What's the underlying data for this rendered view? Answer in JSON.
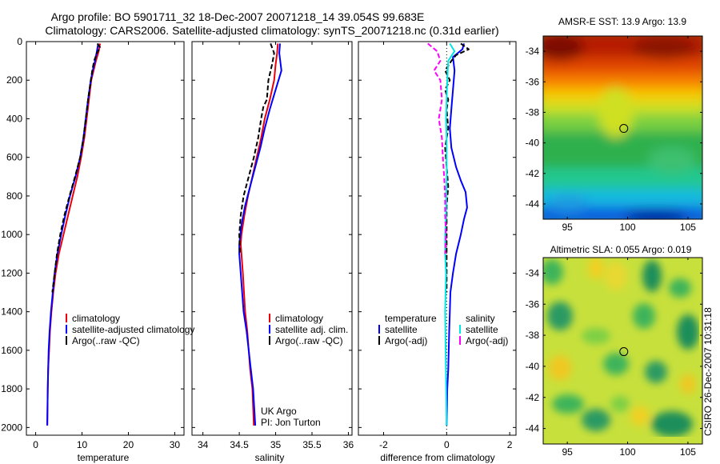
{
  "header": {
    "line1": "Argo profile: BO 5901711_32 18-Dec-2007 20071218_14 39.054S 99.683E",
    "line2": "Climatology: CARS2006. Satellite-adjusted climatology: synTS_20071218.nc (0.31d earlier)"
  },
  "side_label": "CSIRO 26-Dec-2007 10:31:18",
  "annotation": {
    "line1": "UK Argo",
    "line2": "PI: Jon Turton"
  },
  "colors": {
    "climatology": "#e8000b",
    "satellite": "#0000ff",
    "argo": "#000000",
    "sal_satellite": "#00e6e6",
    "sal_argo": "#ff00ff"
  },
  "y_ticks": [
    "0",
    "200",
    "400",
    "600",
    "800",
    "1000",
    "1200",
    "1400",
    "1600",
    "1800",
    "2000"
  ],
  "chart_data": [
    {
      "type": "line",
      "xlabel": "temperature",
      "xlim": [
        -2,
        32
      ],
      "ylim": [
        2040,
        0
      ],
      "x_ticks": [
        "0",
        "10",
        "20",
        "30"
      ],
      "legend": [
        "climatology",
        "satellite-adjusted climatology",
        "Argo(..raw -QC)"
      ],
      "series": [
        {
          "name": "climatology",
          "x": [
            13.9,
            13.6,
            13.0,
            12.5,
            12.0,
            11.5,
            11.0,
            10.5,
            9.8,
            9.0,
            8.0,
            7.0,
            6.0,
            5.0,
            4.3,
            3.8,
            3.4,
            3.1,
            2.9,
            2.7,
            2.6,
            2.5
          ],
          "y": [
            10,
            50,
            100,
            150,
            200,
            300,
            400,
            500,
            600,
            700,
            800,
            900,
            1000,
            1100,
            1200,
            1300,
            1400,
            1500,
            1600,
            1700,
            1800,
            1990
          ]
        },
        {
          "name": "satellite-adjusted climatology",
          "x": [
            13.5,
            13.2,
            12.8,
            12.3,
            11.9,
            11.3,
            10.8,
            10.3,
            9.6,
            8.6,
            7.4,
            6.4,
            5.5,
            4.7,
            4.1,
            3.7,
            3.3,
            3.0,
            2.8,
            2.7,
            2.6,
            2.5
          ],
          "y": [
            10,
            50,
            100,
            150,
            200,
            300,
            400,
            500,
            600,
            700,
            800,
            900,
            1000,
            1100,
            1200,
            1300,
            1400,
            1500,
            1600,
            1700,
            1800,
            1990
          ]
        },
        {
          "name": "Argo(..raw -QC)",
          "x": [
            13.3,
            13.9,
            13.2,
            12.6,
            12.2,
            11.9,
            11.3,
            10.8,
            10.3,
            9.6,
            8.5,
            7.3,
            6.2,
            5.3,
            4.6,
            4.1,
            3.6
          ],
          "y": [
            10,
            30,
            60,
            100,
            150,
            200,
            300,
            400,
            500,
            600,
            700,
            800,
            900,
            1000,
            1100,
            1200,
            1300
          ]
        }
      ]
    },
    {
      "type": "line",
      "xlabel": "salinity",
      "xlim": [
        33.85,
        36.05
      ],
      "ylim": [
        2040,
        0
      ],
      "x_ticks": [
        "34",
        "34.5",
        "35",
        "35.5",
        "36"
      ],
      "legend": [
        "climatology",
        "satellite adj. clim.",
        "Argo(..raw -QC)"
      ],
      "series": [
        {
          "name": "climatology",
          "x": [
            35.03,
            35.02,
            35.0,
            34.98,
            34.92,
            34.85,
            34.8,
            34.74,
            34.68,
            34.62,
            34.57,
            34.53,
            34.52,
            34.55,
            34.58,
            34.61,
            34.63,
            34.65,
            34.68,
            34.7
          ],
          "y": [
            10,
            60,
            120,
            200,
            300,
            400,
            500,
            600,
            700,
            800,
            900,
            1000,
            1050,
            1200,
            1400,
            1500,
            1600,
            1700,
            1800,
            1990
          ]
        },
        {
          "name": "satellite adj. clim.",
          "x": [
            35.06,
            35.05,
            35.08,
            35.0,
            34.92,
            34.85,
            34.79,
            34.72,
            34.65,
            34.58,
            34.53,
            34.5,
            34.5,
            34.53,
            34.56,
            34.6,
            34.63,
            34.66,
            34.69,
            34.72
          ],
          "y": [
            10,
            60,
            150,
            250,
            350,
            450,
            550,
            650,
            750,
            850,
            950,
            1050,
            1100,
            1250,
            1400,
            1500,
            1600,
            1700,
            1800,
            1990
          ]
        },
        {
          "name": "Argo(..raw -QC)",
          "x": [
            34.93,
            34.98,
            34.95,
            34.9,
            34.88,
            34.83,
            34.8,
            34.76,
            34.7,
            34.63,
            34.56,
            34.52,
            34.5,
            34.51
          ],
          "y": [
            10,
            60,
            120,
            200,
            300,
            340,
            400,
            500,
            600,
            700,
            800,
            900,
            1000,
            1100
          ]
        }
      ]
    },
    {
      "type": "line",
      "xlabel": "difference from climatology",
      "xlim": [
        -2.8,
        2.2
      ],
      "ylim": [
        2040,
        0
      ],
      "x_ticks": [
        "-2",
        "0",
        "2"
      ],
      "legend_groups": [
        {
          "title": "temperature",
          "items": [
            "satellite",
            "Argo(-adj)"
          ]
        },
        {
          "title": "salinity",
          "items": [
            "satellite",
            "Argo(-adj)"
          ]
        }
      ],
      "series": [
        {
          "name": "temperature satellite",
          "x": [
            0.55,
            0.5,
            0.2,
            0.25,
            0.2,
            0.15,
            0.1,
            0.15,
            0.3,
            0.45,
            0.6,
            0.65,
            0.55,
            0.45,
            0.3,
            0.2,
            0.12,
            0.1,
            0.08,
            0.05,
            0.02,
            0.0
          ],
          "y": [
            10,
            40,
            80,
            150,
            250,
            350,
            450,
            550,
            650,
            720,
            780,
            860,
            920,
            1000,
            1100,
            1200,
            1300,
            1400,
            1500,
            1700,
            1800,
            1990
          ]
        },
        {
          "name": "temperature Argo(-adj)",
          "x": [
            0.45,
            0.7,
            0.3,
            0.15,
            -0.05,
            0.1,
            -0.05,
            0.05,
            0.0,
            0.05,
            -0.05,
            0.0,
            0.05,
            0.0,
            0.0,
            0.0,
            0.0
          ],
          "y": [
            10,
            40,
            70,
            100,
            150,
            200,
            250,
            300,
            350,
            450,
            550,
            650,
            750,
            850,
            1000,
            1100,
            1300
          ]
        },
        {
          "name": "salinity satellite",
          "x": [
            0.1,
            0.25,
            0.05,
            0.02,
            0.0,
            -0.02,
            0.0,
            0.0,
            -0.02,
            -0.05,
            -0.05,
            -0.02,
            -0.05,
            0.0
          ],
          "y": [
            10,
            50,
            100,
            200,
            300,
            400,
            500,
            700,
            900,
            1000,
            1100,
            1200,
            1400,
            1990
          ]
        },
        {
          "name": "salinity Argo(-adj)",
          "x": [
            -0.6,
            -0.3,
            -0.2,
            -0.4,
            -0.2,
            -0.15,
            -0.25,
            -0.15,
            -0.12,
            -0.08,
            -0.05,
            -0.05,
            -0.02,
            -0.05
          ],
          "y": [
            10,
            50,
            100,
            150,
            200,
            300,
            400,
            500,
            600,
            700,
            800,
            900,
            1000,
            1100
          ]
        }
      ]
    },
    {
      "type": "heatmap",
      "title": "AMSR-E SST: 13.9 Argo: 13.9",
      "xlim": [
        93,
        106.2
      ],
      "ylim": [
        -45,
        -33
      ],
      "x_ticks": [
        "95",
        "100",
        "105"
      ],
      "y_ticks": [
        "-34",
        "-36",
        "-38",
        "-40",
        "-42",
        "-44"
      ],
      "marker": {
        "lon": 99.683,
        "lat": -39.054
      }
    },
    {
      "type": "heatmap",
      "title": "Altimetric SLA: 0.055 Argo: 0.019",
      "xlim": [
        93,
        106.2
      ],
      "ylim": [
        -45,
        -33
      ],
      "x_ticks": [
        "95",
        "100",
        "105"
      ],
      "y_ticks": [
        "-34",
        "-36",
        "-38",
        "-40",
        "-42",
        "-44"
      ],
      "marker": {
        "lon": 99.683,
        "lat": -39.054
      }
    }
  ]
}
